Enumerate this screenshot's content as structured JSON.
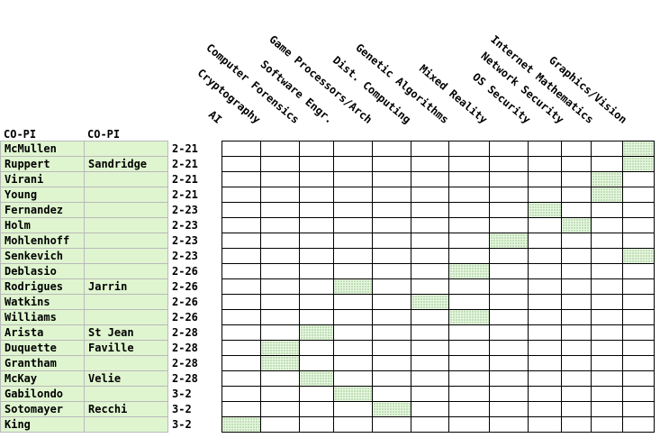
{
  "headers": {
    "pi": "CO-PI",
    "copi": "CO-PI"
  },
  "topics": [
    "AI",
    "Cryptography",
    "Computer Forensics",
    "Software Engr.",
    "Game Processors/Arch",
    "Dist. Computing",
    "Genetic Algorithms",
    "Mixed Reality",
    "OS Security",
    "Network Security",
    "Internet Mathematics",
    "Graphics/Vision"
  ],
  "rows": [
    {
      "pi": "McMullen",
      "copi": "",
      "date": "2-21",
      "topic": 11
    },
    {
      "pi": "Ruppert",
      "copi": "Sandridge",
      "date": "2-21",
      "topic": 11
    },
    {
      "pi": "Virani",
      "copi": "",
      "date": "2-21",
      "topic": 10
    },
    {
      "pi": "Young",
      "copi": "",
      "date": "2-21",
      "topic": 10
    },
    {
      "pi": "Fernandez",
      "copi": "",
      "date": "2-23",
      "topic": 8
    },
    {
      "pi": "Holm",
      "copi": "",
      "date": "2-23",
      "topic": 9
    },
    {
      "pi": "Mohlenhoff",
      "copi": "",
      "date": "2-23",
      "topic": 7
    },
    {
      "pi": "Senkevich",
      "copi": "",
      "date": "2-23",
      "topic": 11
    },
    {
      "pi": "Deblasio",
      "copi": "",
      "date": "2-26",
      "topic": 6
    },
    {
      "pi": "Rodrigues",
      "copi": "Jarrin",
      "date": "2-26",
      "topic": 3
    },
    {
      "pi": "Watkins",
      "copi": "",
      "date": "2-26",
      "topic": 5
    },
    {
      "pi": "Williams",
      "copi": "",
      "date": "2-26",
      "topic": 6
    },
    {
      "pi": "Arista",
      "copi": "St Jean",
      "date": "2-28",
      "topic": 2
    },
    {
      "pi": "Duquette",
      "copi": "Faville",
      "date": "2-28",
      "topic": 1
    },
    {
      "pi": "Grantham",
      "copi": "",
      "date": "2-28",
      "topic": 1
    },
    {
      "pi": "McKay",
      "copi": "Velie",
      "date": "2-28",
      "topic": 2
    },
    {
      "pi": "Gabilondo",
      "copi": "",
      "date": "3-2",
      "topic": 3
    },
    {
      "pi": "Sotomayer",
      "copi": "Recchi",
      "date": "3-2",
      "topic": 4
    },
    {
      "pi": "King",
      "copi": "",
      "date": "3-2",
      "topic": 0
    }
  ],
  "colors": {
    "name_fill": "#dff5d0",
    "mark_fill": "#6aa85a"
  }
}
